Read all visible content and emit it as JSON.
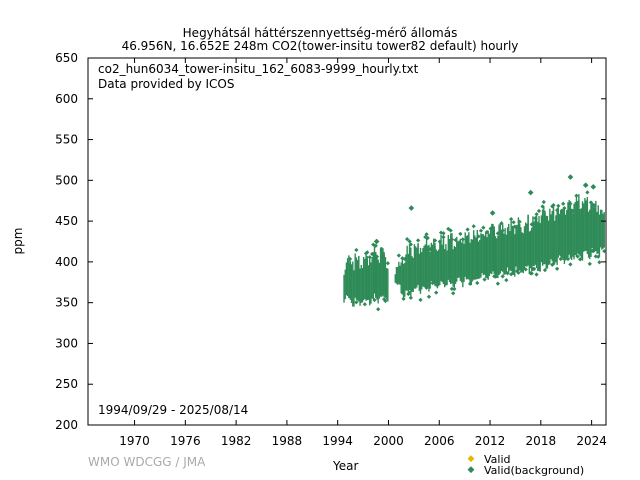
{
  "chart_data": {
    "type": "scatter",
    "title_line1": "Hegyhátsál háttérszennyettség-mérő állomás",
    "title_line2": "46.956N, 16.652E 248m    CO2(tower-insitu tower82 default) hourly",
    "file_label": "co2_hun6034_tower-insitu_162_6083-9999_hourly.txt",
    "provider_label": "Data provided by ICOS",
    "date_range": "1994/09/29 - 2025/08/14",
    "xlabel": "Year",
    "ylabel": "ppm",
    "credit": "WMO WDCGG / JMA",
    "xlim": [
      1964.5,
      2025.7
    ],
    "ylim": [
      200,
      650
    ],
    "x_ticks": [
      1970,
      1976,
      1982,
      1988,
      1994,
      2000,
      2006,
      2012,
      2018,
      2024
    ],
    "y_ticks": [
      200,
      250,
      300,
      350,
      400,
      450,
      500,
      550,
      600,
      650
    ],
    "legend": [
      {
        "label": "Valid",
        "color": "#e6b800"
      },
      {
        "label": "Valid(background)",
        "color": "#2e8b57"
      }
    ],
    "series": [
      {
        "name": "Valid(background)",
        "color": "#2e8b57",
        "band": [
          {
            "x": 1994.75,
            "low": 350,
            "high": 405
          },
          {
            "x": 1995.5,
            "low": 342,
            "high": 410
          },
          {
            "x": 1996.5,
            "low": 344,
            "high": 412
          },
          {
            "x": 1997.5,
            "low": 346,
            "high": 416
          },
          {
            "x": 1998.5,
            "low": 348,
            "high": 420
          },
          {
            "x": 1999.5,
            "low": 348,
            "high": 422
          },
          {
            "x": 1999.95,
            "low": 350,
            "high": 405
          },
          {
            "x": 2000.8,
            "low": 370,
            "high": 400
          },
          {
            "x": 2001.5,
            "low": 356,
            "high": 410
          },
          {
            "x": 2002.5,
            "low": 355,
            "high": 425
          },
          {
            "x": 2003.5,
            "low": 358,
            "high": 428
          },
          {
            "x": 2004.5,
            "low": 362,
            "high": 430
          },
          {
            "x": 2005.5,
            "low": 363,
            "high": 432
          },
          {
            "x": 2006.5,
            "low": 365,
            "high": 435
          },
          {
            "x": 2007.5,
            "low": 366,
            "high": 436
          },
          {
            "x": 2008.5,
            "low": 368,
            "high": 438
          },
          {
            "x": 2009.5,
            "low": 370,
            "high": 440
          },
          {
            "x": 2010.5,
            "low": 372,
            "high": 442
          },
          {
            "x": 2011.5,
            "low": 374,
            "high": 446
          },
          {
            "x": 2012.5,
            "low": 376,
            "high": 448
          },
          {
            "x": 2013.5,
            "low": 378,
            "high": 450
          },
          {
            "x": 2014.5,
            "low": 380,
            "high": 452
          },
          {
            "x": 2015.5,
            "low": 382,
            "high": 456
          },
          {
            "x": 2016.5,
            "low": 385,
            "high": 458
          },
          {
            "x": 2017.5,
            "low": 386,
            "high": 462
          },
          {
            "x": 2018.5,
            "low": 390,
            "high": 470
          },
          {
            "x": 2019.5,
            "low": 392,
            "high": 470
          },
          {
            "x": 2020.5,
            "low": 395,
            "high": 472
          },
          {
            "x": 2021.5,
            "low": 398,
            "high": 478
          },
          {
            "x": 2022.5,
            "low": 400,
            "high": 485
          },
          {
            "x": 2023.5,
            "low": 402,
            "high": 482
          },
          {
            "x": 2024.5,
            "low": 404,
            "high": 480
          },
          {
            "x": 2025.6,
            "low": 405,
            "high": 470
          }
        ],
        "outliers": [
          {
            "x": 2002.7,
            "y": 466
          },
          {
            "x": 2016.8,
            "y": 485
          },
          {
            "x": 2021.5,
            "y": 504
          },
          {
            "x": 2023.3,
            "y": 494
          },
          {
            "x": 2024.2,
            "y": 492
          },
          {
            "x": 1998.6,
            "y": 425
          },
          {
            "x": 2012.3,
            "y": 460
          }
        ]
      }
    ]
  }
}
